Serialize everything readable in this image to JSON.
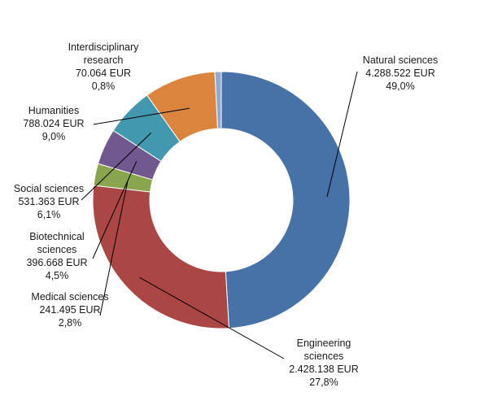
{
  "chart_data": {
    "type": "pie",
    "variant": "donut",
    "currency": "EUR",
    "slices": [
      {
        "name": "Natural sciences",
        "value": 4288522,
        "value_label": "4.288.522 EUR",
        "percent": 49.0,
        "percent_label": "49,0%",
        "color": "#4672A8"
      },
      {
        "name": "Engineering sciences",
        "name_lines": [
          "Engineering",
          "sciences"
        ],
        "value": 2428138,
        "value_label": "2.428.138 EUR",
        "percent": 27.8,
        "percent_label": "27,8%",
        "color": "#AA4643"
      },
      {
        "name": "Medical sciences",
        "value": 241495,
        "value_label": "241.495 EUR",
        "percent": 2.8,
        "percent_label": "2,8%",
        "color": "#89A54E"
      },
      {
        "name": "Biotechnical sciences",
        "name_lines": [
          "Biotechnical",
          "sciences"
        ],
        "value": 396668,
        "value_label": "396.668 EUR",
        "percent": 4.5,
        "percent_label": "4,5%",
        "color": "#71588F"
      },
      {
        "name": "Social sciences",
        "value": 531363,
        "value_label": "531.363 EUR",
        "percent": 6.1,
        "percent_label": "6,1%",
        "color": "#4198AF"
      },
      {
        "name": "Humanities",
        "value": 788024,
        "value_label": "788.024 EUR",
        "percent": 9.0,
        "percent_label": "9,0%",
        "color": "#DB843D"
      },
      {
        "name": "Interdisciplinary research",
        "name_lines": [
          "Interdisciplinary",
          "research"
        ],
        "value": 70064,
        "value_label": "70.064 EUR",
        "percent": 0.8,
        "percent_label": "0,8%",
        "color": "#93A9CF"
      }
    ]
  }
}
